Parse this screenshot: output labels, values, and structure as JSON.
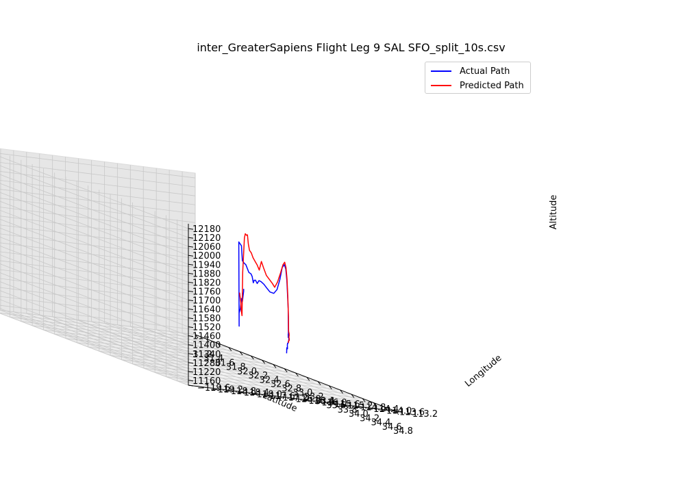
{
  "chart_data": {
    "type": "line",
    "projection": "3d",
    "title": "inter_GreaterSapiens Flight Leg 9 SAL SFO_split_10s.csv",
    "xlabel": "Latitude",
    "ylabel": "Longitude",
    "zlabel": "Altitude",
    "xlim": [
      31.2,
      34.8
    ],
    "ylim": [
      -119.6,
      -113.2
    ],
    "zlim": [
      11160,
      12180
    ],
    "x_ticks": [
      "31.2",
      "31.4",
      "31.6",
      "31.8",
      "32.0",
      "32.2",
      "32.4",
      "32.6",
      "32.8",
      "33.0",
      "33.2",
      "33.4",
      "33.6",
      "33.8",
      "34.0",
      "34.2",
      "34.4",
      "34.6",
      "34.8"
    ],
    "y_ticks": [
      "−119.6",
      "−119.2",
      "−118.8",
      "−118.4",
      "−118.0",
      "−117.6",
      "−117.2",
      "−116.8",
      "−116.4",
      "−116.0",
      "−115.6",
      "−115.2",
      "−114.8",
      "−114.4",
      "−114.0",
      "−113.6",
      "−113.2"
    ],
    "z_ticks": [
      "11160",
      "11220",
      "11280",
      "11340",
      "11400",
      "11460",
      "11520",
      "11580",
      "11640",
      "11700",
      "11760",
      "11820",
      "11880",
      "11940",
      "12000",
      "12060",
      "12120",
      "12180"
    ],
    "grid": true,
    "legend_position": "upper-right",
    "series": [
      {
        "name": "Actual Path",
        "color": "#0000ff",
        "points": [
          [
            32.4,
            -113.77,
            11596
          ],
          [
            32.4,
            -113.77,
            11581
          ],
          [
            32.39,
            -113.79,
            11515
          ],
          [
            32.38,
            -113.8,
            11532
          ],
          [
            32.37,
            -113.82,
            11466
          ],
          [
            32.36,
            -113.84,
            11436
          ],
          [
            32.36,
            -113.84,
            11353
          ],
          [
            32.36,
            -113.85,
            11885
          ],
          [
            32.39,
            -113.82,
            11865
          ],
          [
            32.4,
            -113.81,
            11773
          ],
          [
            32.42,
            -113.79,
            11760
          ],
          [
            32.44,
            -113.77,
            11754
          ],
          [
            32.47,
            -113.73,
            11710
          ],
          [
            32.49,
            -113.7,
            11705
          ],
          [
            32.5,
            -113.68,
            11690
          ],
          [
            32.51,
            -113.66,
            11652
          ],
          [
            32.52,
            -113.65,
            11669
          ],
          [
            32.53,
            -113.63,
            11672
          ],
          [
            32.55,
            -113.61,
            11654
          ],
          [
            32.57,
            -113.59,
            11675
          ],
          [
            32.59,
            -113.56,
            11672
          ],
          [
            32.62,
            -113.52,
            11660
          ],
          [
            32.65,
            -113.48,
            11640
          ],
          [
            32.68,
            -113.44,
            11622
          ],
          [
            32.72,
            -113.39,
            11620
          ],
          [
            32.76,
            -113.36,
            11650
          ],
          [
            32.8,
            -113.34,
            11720
          ],
          [
            32.83,
            -113.32,
            11800
          ],
          [
            32.87,
            -113.32,
            11823
          ],
          [
            32.9,
            -113.33,
            11799
          ],
          [
            32.93,
            -113.35,
            11735
          ],
          [
            32.96,
            -113.38,
            11650
          ],
          [
            32.99,
            -113.41,
            11560
          ],
          [
            33.01,
            -113.44,
            11392
          ],
          [
            33.02,
            -113.46,
            11380
          ],
          [
            33.03,
            -113.48,
            11402
          ],
          [
            33.06,
            -113.51,
            11401
          ],
          [
            33.08,
            -113.55,
            11403
          ],
          [
            33.11,
            -113.6,
            11396
          ],
          [
            33.14,
            -113.65,
            11395
          ],
          [
            33.17,
            -113.7,
            11385
          ],
          [
            33.2,
            -113.74,
            11378
          ],
          [
            33.22,
            -113.79,
            11389
          ],
          [
            33.24,
            -113.82,
            11384
          ],
          [
            33.26,
            -113.87,
            11375
          ],
          [
            33.28,
            -113.92,
            11364
          ],
          [
            33.3,
            -113.96,
            11368
          ],
          [
            33.33,
            -114.02,
            11361
          ],
          [
            33.36,
            -114.07,
            11353
          ],
          [
            33.39,
            -114.12,
            11341
          ],
          [
            33.41,
            -114.16,
            11353
          ],
          [
            33.42,
            -114.19,
            11350
          ],
          [
            33.44,
            -114.23,
            11343
          ],
          [
            33.47,
            -114.28,
            11341
          ],
          [
            33.49,
            -114.32,
            11321
          ]
        ]
      },
      {
        "name": "Predicted Path",
        "color": "#ff0000",
        "points": [
          [
            32.38,
            -113.86,
            11567
          ],
          [
            32.38,
            -113.85,
            11548
          ],
          [
            32.39,
            -113.84,
            11506
          ],
          [
            32.39,
            -113.83,
            11462
          ],
          [
            32.4,
            -113.82,
            11425
          ],
          [
            32.4,
            -113.8,
            11700
          ],
          [
            32.42,
            -113.78,
            11920
          ],
          [
            32.43,
            -113.77,
            11948
          ],
          [
            32.44,
            -113.75,
            11940
          ],
          [
            32.45,
            -113.74,
            11945
          ],
          [
            32.46,
            -113.73,
            11890
          ],
          [
            32.47,
            -113.71,
            11850
          ],
          [
            32.49,
            -113.69,
            11838
          ],
          [
            32.51,
            -113.67,
            11810
          ],
          [
            32.53,
            -113.64,
            11790
          ],
          [
            32.55,
            -113.61,
            11770
          ],
          [
            32.57,
            -113.58,
            11742
          ],
          [
            32.59,
            -113.55,
            11800
          ],
          [
            32.61,
            -113.52,
            11765
          ],
          [
            32.64,
            -113.48,
            11720
          ],
          [
            32.67,
            -113.44,
            11700
          ],
          [
            32.7,
            -113.4,
            11680
          ],
          [
            32.73,
            -113.38,
            11660
          ],
          [
            32.77,
            -113.36,
            11700
          ],
          [
            32.81,
            -113.34,
            11760
          ],
          [
            32.85,
            -113.33,
            11820
          ],
          [
            32.88,
            -113.33,
            11840
          ],
          [
            32.91,
            -113.34,
            11810
          ],
          [
            32.94,
            -113.36,
            11740
          ],
          [
            32.97,
            -113.39,
            11640
          ],
          [
            33.0,
            -113.42,
            11510
          ],
          [
            33.02,
            -113.45,
            11425
          ],
          [
            33.04,
            -113.48,
            11416
          ],
          [
            33.07,
            -113.52,
            11412
          ],
          [
            33.1,
            -113.57,
            11408
          ],
          [
            33.13,
            -113.62,
            11405
          ],
          [
            33.16,
            -113.68,
            11395
          ],
          [
            33.19,
            -113.72,
            11385
          ],
          [
            33.22,
            -113.77,
            11388
          ],
          [
            33.24,
            -113.82,
            11378
          ],
          [
            33.26,
            -113.86,
            11382
          ],
          [
            33.29,
            -113.92,
            11370
          ]
        ]
      }
    ]
  }
}
